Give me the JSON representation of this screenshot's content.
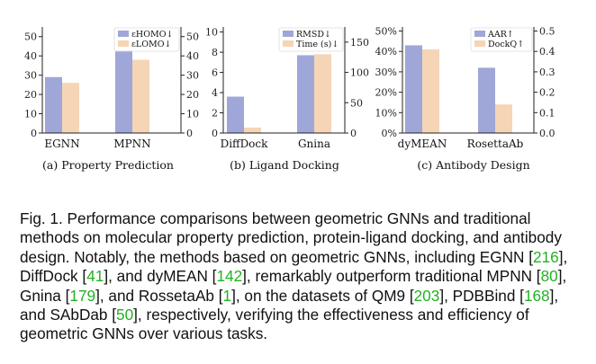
{
  "colors": {
    "series1": "#9ea7d8",
    "series2": "#f5d5b6",
    "axis": "#222222",
    "ref_link": "#22b222"
  },
  "chart_data": [
    {
      "type": "bar",
      "id": "property",
      "subcaption": "(a)  Property Prediction",
      "categories": [
        "EGNN",
        "MPNN"
      ],
      "left_axis": {
        "ylim": [
          0,
          55
        ],
        "ticks": [
          0,
          10,
          20,
          30,
          40,
          50
        ],
        "tick_labels": [
          "0",
          "10",
          "20",
          "30",
          "40",
          "50"
        ]
      },
      "right_axis": {
        "ylim": [
          0,
          55
        ],
        "ticks": [
          0,
          10,
          20,
          30,
          40,
          50
        ],
        "tick_labels": [
          "0",
          "10",
          "20",
          "30",
          "40",
          "50"
        ]
      },
      "series": [
        {
          "name": "εHOMO↓",
          "axis": "left",
          "values": [
            29,
            43
          ]
        },
        {
          "name": "εLOMO↓",
          "axis": "right",
          "values": [
            26,
            38
          ]
        }
      ],
      "legend": "top-right"
    },
    {
      "type": "bar",
      "id": "docking",
      "subcaption": "(b)  Ligand Docking",
      "categories": [
        "DiffDock",
        "Gnina"
      ],
      "left_axis": {
        "ylim": [
          0,
          10.5
        ],
        "ticks": [
          0,
          2,
          4,
          6,
          8,
          10
        ],
        "tick_labels": [
          "0",
          "2",
          "4",
          "6",
          "8",
          "10"
        ]
      },
      "right_axis": {
        "ylim": [
          0,
          175
        ],
        "ticks": [
          0,
          50,
          100,
          150
        ],
        "tick_labels": [
          "0",
          "50",
          "100",
          "150"
        ]
      },
      "series": [
        {
          "name": "RMSD↓",
          "axis": "left",
          "values": [
            3.6,
            7.7
          ]
        },
        {
          "name": "Time (s)↓",
          "axis": "right",
          "values": [
            9,
            130
          ]
        }
      ],
      "legend": "top-right"
    },
    {
      "type": "bar",
      "id": "antibody",
      "subcaption": "(c)  Antibody Design",
      "categories": [
        "dyMEAN",
        "RosettaAb"
      ],
      "left_axis": {
        "ylim": [
          0,
          0.52
        ],
        "ticks": [
          0,
          0.1,
          0.2,
          0.3,
          0.4,
          0.5
        ],
        "tick_labels": [
          "0%",
          "10%",
          "20%",
          "30%",
          "40%",
          "50%"
        ]
      },
      "right_axis": {
        "ylim": [
          0,
          0.52
        ],
        "ticks": [
          0,
          0.1,
          0.2,
          0.3,
          0.4,
          0.5
        ],
        "tick_labels": [
          "0.0",
          "0.1",
          "0.2",
          "0.3",
          "0.4",
          "0.5"
        ]
      },
      "series": [
        {
          "name": "AAR↑",
          "axis": "left",
          "values": [
            0.43,
            0.32
          ]
        },
        {
          "name": "DockQ↑",
          "axis": "right",
          "values": [
            0.41,
            0.14
          ]
        }
      ],
      "legend": "top-right"
    }
  ],
  "caption": {
    "label": "Fig. 1.",
    "segments": [
      {
        "text": " Performance comparisons between geometric GNNs and traditional methods on molecular property prediction, protein-ligand docking, and antibody design. Notably, the methods based on geometric GNNs, including EGNN [",
        "ref": false
      },
      {
        "text": "216",
        "ref": true
      },
      {
        "text": "], DiffDock [",
        "ref": false
      },
      {
        "text": "41",
        "ref": true
      },
      {
        "text": "], and dyMEAN [",
        "ref": false
      },
      {
        "text": "142",
        "ref": true
      },
      {
        "text": "], remarkably outperform traditional MPNN [",
        "ref": false
      },
      {
        "text": "80",
        "ref": true
      },
      {
        "text": "], Gnina [",
        "ref": false
      },
      {
        "text": "179",
        "ref": true
      },
      {
        "text": "], and RossetaAb [",
        "ref": false
      },
      {
        "text": "1",
        "ref": true
      },
      {
        "text": "], on the datasets of QM9 [",
        "ref": false
      },
      {
        "text": "203",
        "ref": true
      },
      {
        "text": "], PDBBind [",
        "ref": false
      },
      {
        "text": "168",
        "ref": true
      },
      {
        "text": "], and SAbDab [",
        "ref": false
      },
      {
        "text": "50",
        "ref": true
      },
      {
        "text": "], respectively, verifying the effectiveness and efficiency of geometric GNNs over various tasks.",
        "ref": false
      }
    ]
  }
}
